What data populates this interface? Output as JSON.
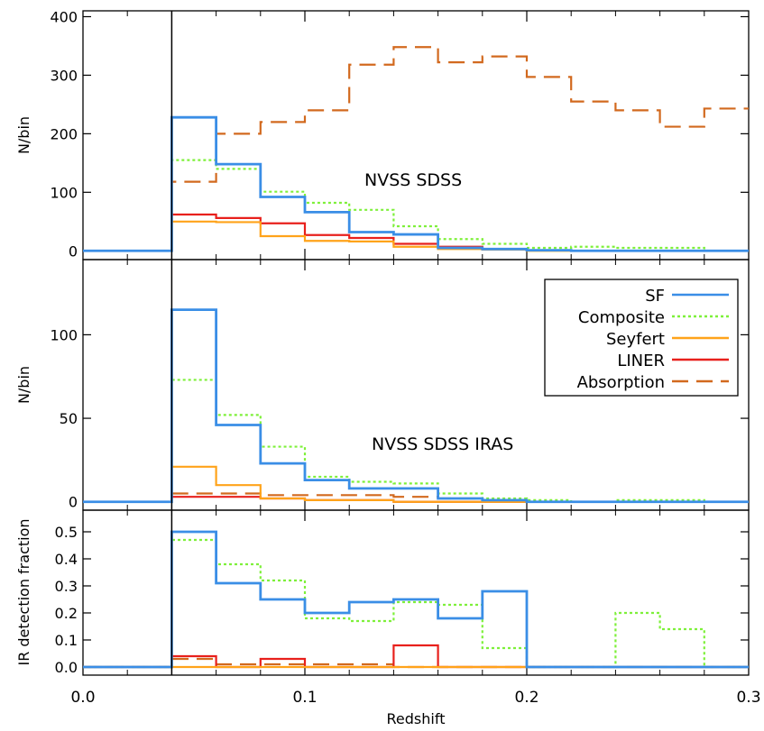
{
  "chart_data": [
    {
      "type": "line",
      "subtype": "step-histogram",
      "panel": "top",
      "annotation": "NVSS SDSS",
      "ylabel": "N/bin",
      "ylim": [
        -15,
        410
      ],
      "yticks": [
        0,
        100,
        200,
        300,
        400
      ],
      "xlim": [
        0.0,
        0.3
      ],
      "bin_edges": [
        0.04,
        0.06,
        0.08,
        0.1,
        0.12,
        0.14,
        0.16,
        0.18,
        0.2,
        0.22,
        0.24,
        0.26,
        0.28,
        0.3
      ],
      "series": [
        {
          "name": "SF",
          "values": [
            228,
            148,
            92,
            66,
            32,
            28,
            5,
            3,
            1,
            0,
            0,
            0,
            0
          ]
        },
        {
          "name": "Composite",
          "values": [
            155,
            140,
            101,
            82,
            70,
            42,
            20,
            12,
            5,
            7,
            5,
            5,
            0
          ]
        },
        {
          "name": "Seyfert",
          "values": [
            50,
            49,
            25,
            17,
            16,
            7,
            3,
            2,
            0,
            0,
            0,
            0,
            0
          ]
        },
        {
          "name": "LINER",
          "values": [
            62,
            56,
            47,
            27,
            22,
            12,
            7,
            3,
            1,
            0,
            0,
            0,
            0
          ]
        },
        {
          "name": "Absorption",
          "values": [
            118,
            200,
            220,
            240,
            318,
            348,
            322,
            332,
            297,
            255,
            240,
            212,
            243
          ]
        }
      ]
    },
    {
      "type": "line",
      "subtype": "step-histogram",
      "panel": "middle",
      "annotation": "NVSS SDSS IRAS",
      "ylabel": "N/bin",
      "ylim": [
        -5,
        145
      ],
      "yticks": [
        0,
        50,
        100
      ],
      "xlim": [
        0.0,
        0.3
      ],
      "bin_edges": [
        0.04,
        0.06,
        0.08,
        0.1,
        0.12,
        0.14,
        0.16,
        0.18,
        0.2,
        0.22,
        0.24,
        0.26,
        0.28,
        0.3
      ],
      "series": [
        {
          "name": "SF",
          "values": [
            115,
            46,
            23,
            13,
            8,
            8,
            2,
            1,
            0,
            0,
            0,
            0,
            0
          ]
        },
        {
          "name": "Composite",
          "values": [
            73,
            52,
            33,
            15,
            12,
            11,
            5,
            2,
            1,
            0,
            1,
            1,
            0
          ]
        },
        {
          "name": "Seyfert",
          "values": [
            21,
            10,
            2,
            1,
            1,
            0,
            0,
            0,
            0,
            0,
            0,
            0,
            0
          ]
        },
        {
          "name": "LINER",
          "values": [
            3,
            3,
            2,
            1,
            1,
            0,
            0,
            0,
            0,
            0,
            0,
            0,
            0
          ]
        },
        {
          "name": "Absorption",
          "values": [
            5,
            5,
            4,
            4,
            4,
            3,
            2,
            1,
            0,
            0,
            0,
            0,
            0
          ]
        }
      ]
    },
    {
      "type": "line",
      "subtype": "step-histogram",
      "panel": "bottom",
      "ylabel": "IR detection fraction",
      "xlabel": "Redshift",
      "ylim": [
        -0.03,
        0.58
      ],
      "yticks": [
        0.0,
        0.1,
        0.2,
        0.3,
        0.4,
        0.5
      ],
      "ytick_labels": [
        "0.0",
        "0.1",
        "0.2",
        "0.3",
        "0.4",
        "0.5"
      ],
      "xlim": [
        0.0,
        0.3
      ],
      "xticks": [
        0.0,
        0.1,
        0.2,
        0.3
      ],
      "xtick_labels": [
        "0.0",
        "0.1",
        "0.2",
        "0.3"
      ],
      "bin_edges": [
        0.04,
        0.06,
        0.08,
        0.1,
        0.12,
        0.14,
        0.16,
        0.18,
        0.2,
        0.22,
        0.24,
        0.26,
        0.28,
        0.3
      ],
      "series": [
        {
          "name": "SF",
          "values": [
            0.5,
            0.31,
            0.25,
            0.2,
            0.24,
            0.25,
            0.18,
            0.28,
            0,
            0,
            0,
            0,
            0
          ]
        },
        {
          "name": "Composite",
          "values": [
            0.47,
            0.38,
            0.32,
            0.18,
            0.17,
            0.24,
            0.23,
            0.07,
            0,
            0,
            0.2,
            0.14,
            0
          ]
        },
        {
          "name": "Seyfert",
          "values": [
            0,
            0,
            0,
            0,
            0,
            0,
            0,
            0,
            0,
            0,
            0,
            0,
            0
          ]
        },
        {
          "name": "LINER",
          "values": [
            0.04,
            0,
            0.03,
            0,
            0,
            0.08,
            0,
            0,
            0,
            0,
            0,
            0,
            0
          ]
        },
        {
          "name": "Absorption",
          "values": [
            0.03,
            0.01,
            0.01,
            0.01,
            0.01,
            0,
            0,
            0,
            0,
            0,
            0,
            0,
            0
          ]
        }
      ]
    }
  ],
  "legend": {
    "placement": "middle-panel top-right",
    "entries": [
      "SF",
      "Composite",
      "Seyfert",
      "LINER",
      "Absorption"
    ]
  },
  "vline_x": 0.04,
  "series_colors": {
    "SF": "#3a8ee6",
    "Composite": "#7ef03a",
    "Seyfert": "#ffa31a",
    "LINER": "#e8201c",
    "Absorption": "#d2691e"
  },
  "series_dash": {
    "SF": "",
    "Composite": "3,3",
    "Seyfert": "",
    "LINER": "",
    "Absorption": "18,9"
  }
}
